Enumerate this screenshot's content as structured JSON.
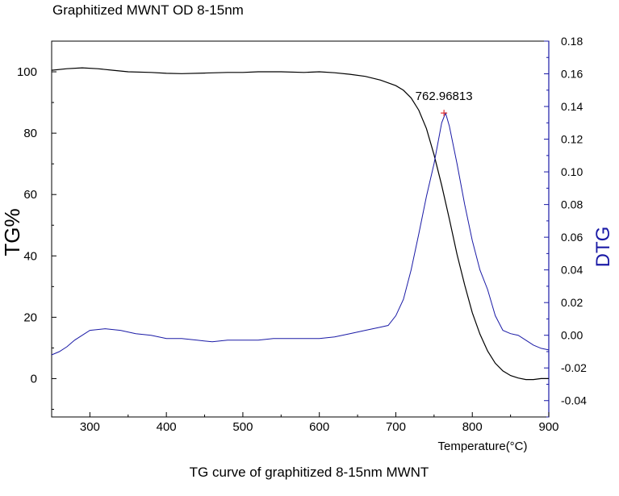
{
  "header": {
    "title": "Graphitized MWNT OD 8-15nm"
  },
  "caption": "TG curve of graphitized 8-15nm MWNT",
  "colors": {
    "tg": "#000000",
    "dtg": "#1a1aa6",
    "right_axis": "#1a1aa6",
    "peak_marker": "#e03030"
  },
  "chart_data": {
    "type": "line",
    "xlabel": "Temperature(°C)",
    "ylabel": "TG%",
    "y2label": "DTG",
    "xlim": [
      250,
      900
    ],
    "ylim": [
      -12.5,
      110
    ],
    "y2lim": [
      -0.05,
      0.18
    ],
    "x_ticks": [
      300,
      400,
      500,
      600,
      700,
      800,
      900
    ],
    "y_ticks": [
      0,
      20,
      40,
      60,
      80,
      100
    ],
    "y2_ticks": [
      "-0.04",
      "-0.02",
      "0.00",
      "0.02",
      "0.04",
      "0.06",
      "0.08",
      "0.10",
      "0.12",
      "0.14",
      "0.16",
      "0.18"
    ],
    "grid": false,
    "annotation": {
      "text": "762.96813",
      "x": 762.97,
      "y2": 0.136
    },
    "series": [
      {
        "axis": "left",
        "color": "#000000",
        "x": [
          250,
          270,
          290,
          310,
          330,
          350,
          380,
          400,
          420,
          450,
          480,
          500,
          520,
          550,
          580,
          600,
          620,
          640,
          660,
          680,
          700,
          710,
          720,
          730,
          740,
          750,
          760,
          770,
          780,
          790,
          800,
          810,
          820,
          830,
          840,
          850,
          860,
          870,
          880,
          890,
          900
        ],
        "values": [
          100.5,
          101.0,
          101.3,
          101.0,
          100.5,
          100.0,
          99.8,
          99.5,
          99.4,
          99.6,
          99.8,
          99.8,
          100.0,
          100.0,
          99.8,
          100.0,
          99.7,
          99.2,
          98.5,
          97.3,
          95.5,
          94.0,
          91.5,
          87.5,
          81.5,
          73.0,
          63.0,
          52.0,
          40.5,
          30.5,
          21.5,
          14.5,
          9.0,
          5.0,
          2.5,
          1.0,
          0.2,
          -0.3,
          -0.3,
          0.0,
          0.0
        ]
      },
      {
        "axis": "right",
        "color": "#1a1aa6",
        "x": [
          250,
          260,
          270,
          280,
          290,
          300,
          320,
          340,
          360,
          380,
          400,
          420,
          440,
          460,
          480,
          500,
          520,
          540,
          560,
          580,
          600,
          620,
          640,
          660,
          680,
          690,
          700,
          710,
          720,
          730,
          740,
          750,
          760,
          765,
          770,
          780,
          790,
          800,
          810,
          820,
          830,
          840,
          850,
          860,
          870,
          880,
          890,
          900
        ],
        "values": [
          -0.012,
          -0.01,
          -0.007,
          -0.003,
          0.0,
          0.003,
          0.004,
          0.003,
          0.001,
          0.0,
          -0.002,
          -0.002,
          -0.003,
          -0.004,
          -0.003,
          -0.003,
          -0.003,
          -0.002,
          -0.002,
          -0.002,
          -0.002,
          -0.001,
          0.001,
          0.003,
          0.005,
          0.006,
          0.012,
          0.022,
          0.04,
          0.062,
          0.085,
          0.105,
          0.13,
          0.136,
          0.128,
          0.105,
          0.08,
          0.058,
          0.04,
          0.028,
          0.012,
          0.003,
          0.001,
          0.0,
          -0.003,
          -0.006,
          -0.008,
          -0.009
        ]
      }
    ]
  }
}
